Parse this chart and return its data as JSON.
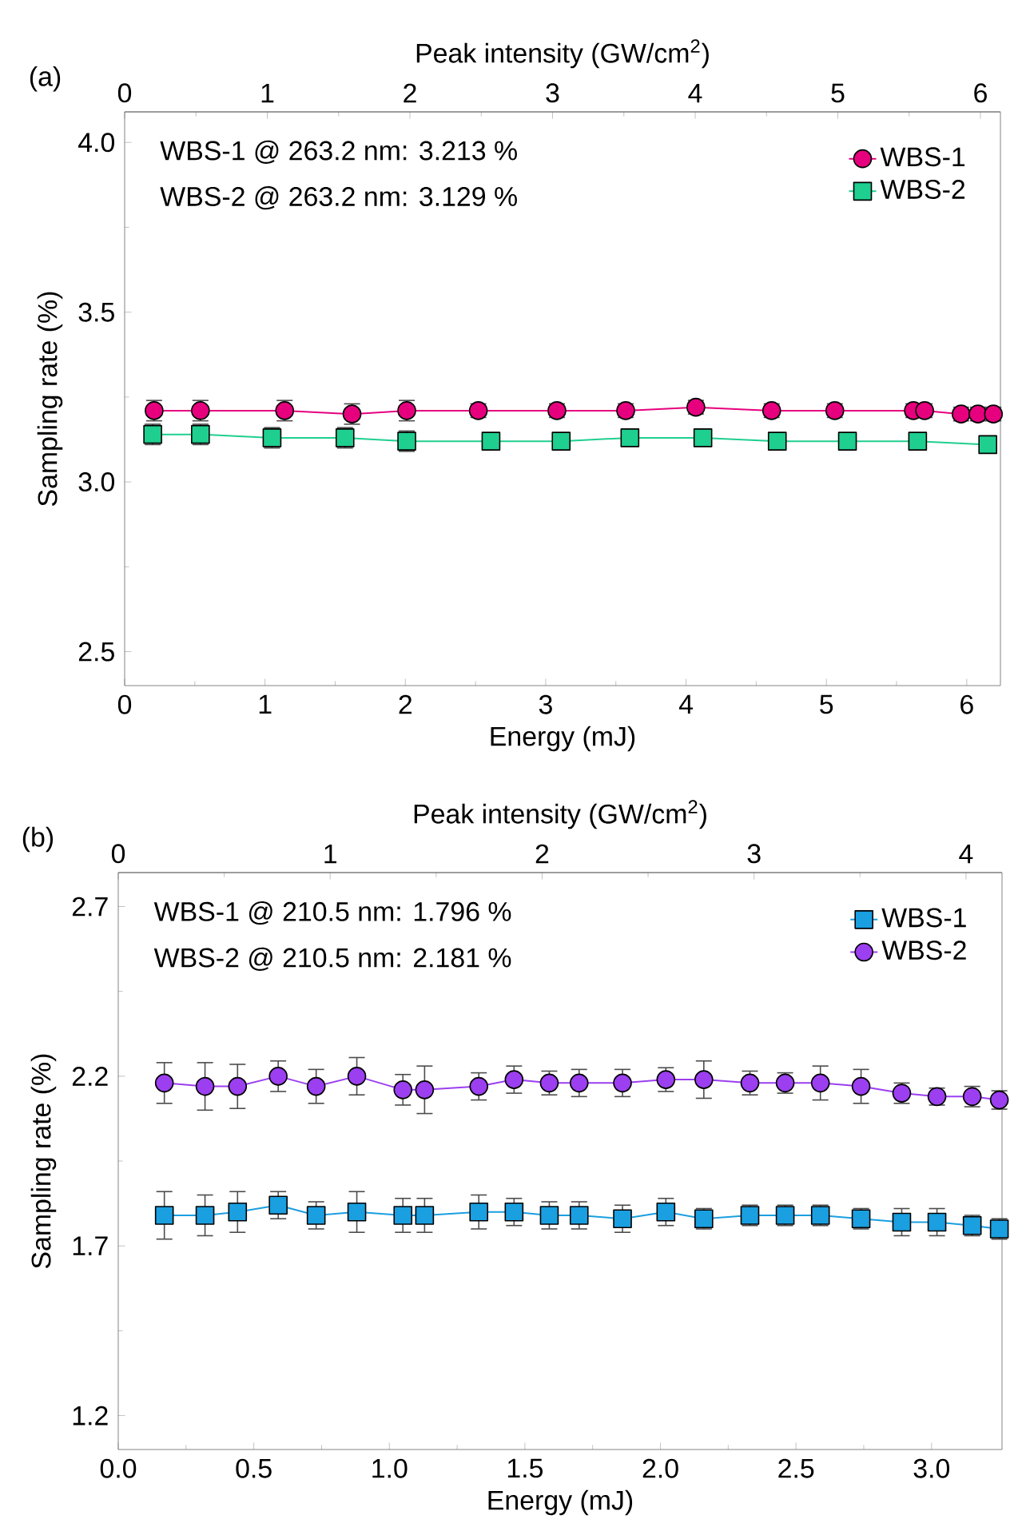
{
  "chart_data": [
    {
      "type": "line",
      "annotations": [
        "(a)",
        "WBS-1 @ 263.2 nm: 3.213 %",
        "WBS-2 @ 263.2 nm: 3.129 %"
      ],
      "xlabel": "Energy (mJ)",
      "x2label": "Peak intensity (GW/cm$^{2}$)",
      "ylabel": "Sampling rate (%)",
      "xlim": [
        0,
        6.24
      ],
      "xticks": [
        0,
        1,
        2,
        3,
        4,
        5,
        6
      ],
      "x2lim": [
        0,
        6.14
      ],
      "x2ticks": [
        0,
        1,
        2,
        3,
        4,
        5,
        6
      ],
      "ylim": [
        2.4,
        4.09
      ],
      "yticks": [
        2.5,
        {
          "value": 3,
          "label": "3.0"
        },
        3.5,
        {
          "value": 4,
          "label": "4.0"
        }
      ],
      "legend": "top right",
      "series": [
        {
          "name": "WBS-1",
          "color": "#e6007e",
          "marker": "circle",
          "x": [
            0.21,
            0.54,
            1.14,
            1.62,
            2.01,
            2.52,
            3.08,
            3.57,
            4.07,
            4.61,
            5.06,
            5.62,
            5.7,
            5.96,
            6.08,
            6.19
          ],
          "values": [
            3.21,
            3.21,
            3.21,
            3.2,
            3.21,
            3.21,
            3.21,
            3.21,
            3.22,
            3.21,
            3.21,
            3.21,
            3.21,
            3.2,
            3.2,
            3.2
          ],
          "errors": [
            0.03,
            0.03,
            0.03,
            0.03,
            0.03,
            0.02,
            0.02,
            0.02,
            0.02,
            0.02,
            0.02,
            0.02,
            0.02,
            0.02,
            0.02,
            0.02
          ]
        },
        {
          "name": "WBS-2",
          "color": "#1fcf8f",
          "marker": "square",
          "x": [
            0.2,
            0.54,
            1.05,
            1.57,
            2.01,
            2.61,
            3.11,
            3.6,
            4.12,
            4.65,
            5.15,
            5.65,
            6.15
          ],
          "values": [
            3.14,
            3.14,
            3.13,
            3.13,
            3.12,
            3.12,
            3.12,
            3.13,
            3.13,
            3.12,
            3.12,
            3.12,
            3.11
          ],
          "errors": [
            0.03,
            0.03,
            0.03,
            0.03,
            0.03,
            0.02,
            0.02,
            0.02,
            0.02,
            0.02,
            0.02,
            0.02,
            0.02
          ]
        }
      ]
    },
    {
      "type": "line",
      "annotations": [
        "(b)",
        "WBS-1 @ 210.5 nm: 1.796 %",
        "WBS-2 @ 210.5 nm: 2.181 %"
      ],
      "xlabel": "Energy (mJ)",
      "x2label": "Peak intensity (GW/cm$^{2}$)",
      "ylabel": "Sampling rate (%)",
      "xlim": [
        0,
        3.26
      ],
      "xticks": [
        {
          "value": 0,
          "label": "0.0"
        },
        0.5,
        {
          "value": 1,
          "label": "1.0"
        },
        1.5,
        {
          "value": 2,
          "label": "2.0"
        },
        2.5,
        {
          "value": 3,
          "label": "3.0"
        }
      ],
      "x2lim": [
        0,
        4.17
      ],
      "x2ticks": [
        0,
        1,
        2,
        3,
        4
      ],
      "ylim": [
        1.1,
        2.8
      ],
      "yticks": [
        1.2,
        1.7,
        2.2,
        2.7
      ],
      "legend": "top right",
      "series": [
        {
          "name": "WBS-1",
          "color": "#1a9fe0",
          "marker": "square",
          "x": [
            0.17,
            0.32,
            0.44,
            0.59,
            0.73,
            0.88,
            1.05,
            1.13,
            1.33,
            1.46,
            1.59,
            1.7,
            1.86,
            2.02,
            2.16,
            2.33,
            2.46,
            2.59,
            2.74,
            2.89,
            3.02,
            3.15,
            3.25
          ],
          "values": [
            1.79,
            1.79,
            1.8,
            1.82,
            1.79,
            1.8,
            1.79,
            1.79,
            1.8,
            1.8,
            1.79,
            1.79,
            1.78,
            1.8,
            1.78,
            1.79,
            1.79,
            1.79,
            1.78,
            1.77,
            1.77,
            1.76,
            1.75
          ],
          "errors": [
            0.07,
            0.06,
            0.06,
            0.04,
            0.04,
            0.06,
            0.05,
            0.05,
            0.05,
            0.04,
            0.04,
            0.04,
            0.04,
            0.04,
            0.03,
            0.03,
            0.03,
            0.03,
            0.03,
            0.04,
            0.04,
            0.03,
            0.03
          ]
        },
        {
          "name": "WBS-2",
          "color": "#9b3ff0",
          "marker": "circle",
          "x": [
            0.17,
            0.32,
            0.44,
            0.59,
            0.73,
            0.88,
            1.05,
            1.13,
            1.33,
            1.46,
            1.59,
            1.7,
            1.86,
            2.02,
            2.16,
            2.33,
            2.46,
            2.59,
            2.74,
            2.89,
            3.02,
            3.15,
            3.25
          ],
          "values": [
            2.18,
            2.17,
            2.17,
            2.2,
            2.17,
            2.2,
            2.16,
            2.16,
            2.17,
            2.19,
            2.18,
            2.18,
            2.18,
            2.19,
            2.19,
            2.18,
            2.18,
            2.18,
            2.17,
            2.15,
            2.14,
            2.14,
            2.13
          ],
          "errors": [
            0.06,
            0.07,
            0.065,
            0.045,
            0.05,
            0.055,
            0.045,
            0.07,
            0.04,
            0.04,
            0.035,
            0.04,
            0.04,
            0.035,
            0.055,
            0.035,
            0.03,
            0.05,
            0.05,
            0.03,
            0.025,
            0.03,
            0.027
          ]
        }
      ]
    }
  ]
}
